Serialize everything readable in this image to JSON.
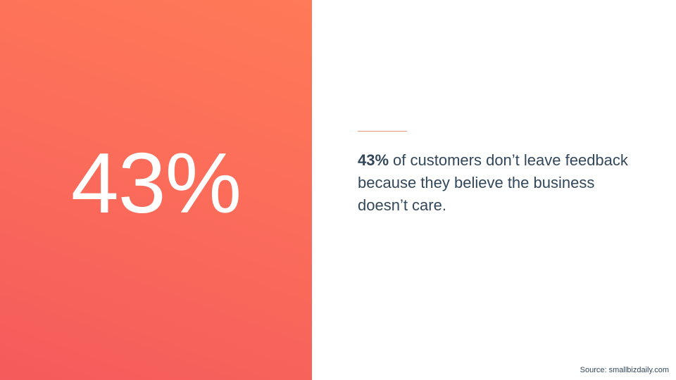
{
  "stat": {
    "value_label": "43%"
  },
  "statement": {
    "emphasis": "43%",
    "text": "of customers don’t leave feedback because they believe the business doesn’t care."
  },
  "source": "Source: smallbizdaily.com"
}
